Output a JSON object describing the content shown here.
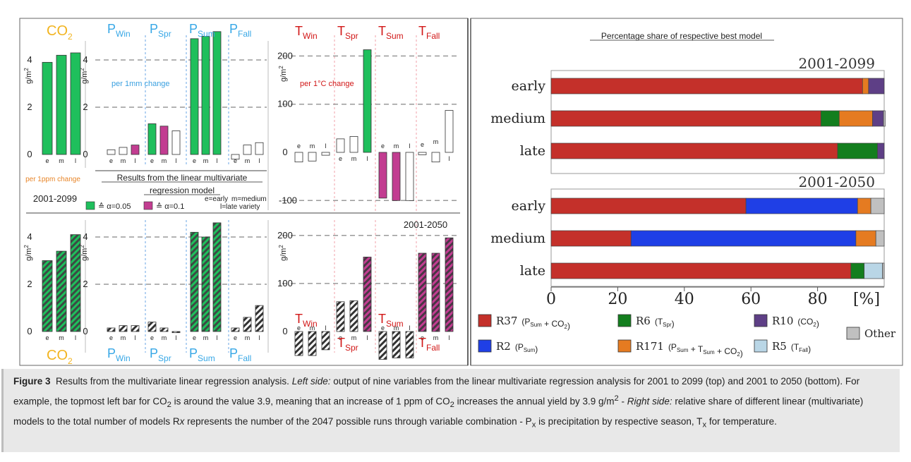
{
  "chart_data": [
    {
      "panel": "left-top",
      "type": "bar",
      "period": "2001-2099",
      "categories": [
        "e",
        "m",
        "l"
      ],
      "groups": [
        {
          "label": "CO",
          "sub": "2",
          "unit_note": "per 1ppm change",
          "values": [
            3.9,
            4.2,
            4.3
          ],
          "sig": [
            "a05",
            "a05",
            "a05"
          ]
        },
        {
          "label": "P",
          "sub": "Win",
          "values": [
            0.2,
            0.3,
            0.4
          ],
          "sig": [
            "none",
            "none",
            "a10"
          ]
        },
        {
          "label": "P",
          "sub": "Spr",
          "values": [
            1.3,
            1.2,
            1.0
          ],
          "sig": [
            "a05",
            "a10",
            "none"
          ]
        },
        {
          "label": "P",
          "sub": "Sum",
          "values": [
            4.9,
            5.0,
            5.2
          ],
          "sig": [
            "a05",
            "a05",
            "a05"
          ]
        },
        {
          "label": "P",
          "sub": "Fall",
          "values": [
            -0.2,
            0.4,
            0.5
          ],
          "sig": [
            "none",
            "none",
            "none"
          ]
        },
        {
          "label": "T",
          "sub": "Win",
          "values": [
            -20,
            -18,
            -6
          ],
          "sig": [
            "none",
            "none",
            "none"
          ]
        },
        {
          "label": "T",
          "sub": "Spr",
          "values": [
            28,
            33,
            213
          ],
          "sig": [
            "none",
            "none",
            "a05"
          ]
        },
        {
          "label": "T",
          "sub": "Sum",
          "values": [
            -95,
            -100,
            -100
          ],
          "sig": [
            "a10",
            "a10",
            "none"
          ]
        },
        {
          "label": "T",
          "sub": "Fall",
          "values": [
            -5,
            -20,
            87
          ],
          "sig": [
            "none",
            "none",
            "none"
          ]
        }
      ],
      "p_axis": {
        "ylabel": "g/m",
        "ylabel_sup": "2",
        "ticks": [
          0,
          2,
          4
        ],
        "note": "per 1mm change"
      },
      "t_axis": {
        "ylabel": "g/m",
        "ylabel_sup": "2",
        "ticks": [
          -100,
          0,
          100,
          200
        ],
        "note": "per 1°C change"
      }
    },
    {
      "panel": "left-bottom",
      "type": "bar",
      "period": "2001-2050",
      "categories": [
        "e",
        "m",
        "l"
      ],
      "groups": [
        {
          "label": "CO",
          "sub": "2",
          "values": [
            3.0,
            3.4,
            4.1
          ],
          "sig": [
            "a05",
            "a05",
            "a05"
          ]
        },
        {
          "label": "P",
          "sub": "Win",
          "values": [
            0.15,
            0.25,
            0.25
          ],
          "sig": [
            "none",
            "none",
            "none"
          ]
        },
        {
          "label": "P",
          "sub": "Spr",
          "values": [
            0.4,
            0.15,
            -0.05
          ],
          "sig": [
            "none",
            "none",
            "none"
          ]
        },
        {
          "label": "P",
          "sub": "Sum",
          "values": [
            4.2,
            4.0,
            4.6
          ],
          "sig": [
            "a05",
            "a05",
            "a05"
          ]
        },
        {
          "label": "P",
          "sub": "Fall",
          "values": [
            0.15,
            0.6,
            1.1
          ],
          "sig": [
            "none",
            "none",
            "none"
          ]
        },
        {
          "label": "T",
          "sub": "Win",
          "values": [
            -50,
            -50,
            -38
          ],
          "sig": [
            "none",
            "none",
            "none"
          ]
        },
        {
          "label": "T",
          "sub": "Spr",
          "values": [
            62,
            64,
            155
          ],
          "sig": [
            "none",
            "none",
            "a10"
          ]
        },
        {
          "label": "T",
          "sub": "Sum",
          "values": [
            -58,
            -55,
            -55
          ],
          "sig": [
            "none",
            "none",
            "none"
          ]
        },
        {
          "label": "T",
          "sub": "Fall",
          "values": [
            163,
            163,
            195
          ],
          "sig": [
            "a10",
            "a10",
            "a10"
          ]
        }
      ]
    },
    {
      "panel": "right",
      "type": "bar",
      "orientation": "horizontal",
      "stacked": true,
      "title": "Percentage share of respective best model",
      "xlabel": "[%]",
      "xlim": [
        0,
        100
      ],
      "x_ticks": [
        0,
        20,
        40,
        60,
        80
      ],
      "rows": [
        "early",
        "medium",
        "late"
      ],
      "blocks": [
        {
          "period": "2001-2099",
          "bars": [
            [
              {
                "m": "R37",
                "v": 93.5
              },
              {
                "m": "R171",
                "v": 1.8
              },
              {
                "m": "R10",
                "v": 4.7
              }
            ],
            [
              {
                "m": "R37",
                "v": 81.0
              },
              {
                "m": "R6",
                "v": 5.5
              },
              {
                "m": "R171",
                "v": 10.0
              },
              {
                "m": "R10",
                "v": 3.3
              },
              {
                "m": "Other",
                "v": 0.5
              }
            ],
            [
              {
                "m": "R37",
                "v": 86.0
              },
              {
                "m": "R6",
                "v": 12.0
              },
              {
                "m": "R10",
                "v": 2.0
              }
            ]
          ]
        },
        {
          "period": "2001-2050",
          "bars": [
            [
              {
                "m": "R37",
                "v": 58.5
              },
              {
                "m": "R2",
                "v": 33.5
              },
              {
                "m": "R171",
                "v": 4.0
              },
              {
                "m": "Other",
                "v": 4.0
              }
            ],
            [
              {
                "m": "R37",
                "v": 24.0
              },
              {
                "m": "R2",
                "v": 67.5
              },
              {
                "m": "R171",
                "v": 6.0
              },
              {
                "m": "Other",
                "v": 2.5
              }
            ],
            [
              {
                "m": "R37",
                "v": 90.0
              },
              {
                "m": "R6",
                "v": 4.0
              },
              {
                "m": "R5",
                "v": 5.5
              },
              {
                "m": "Other",
                "v": 0.5
              }
            ]
          ]
        }
      ]
    }
  ],
  "colors": {
    "R37": "#c4302a",
    "R2": "#1f3fe6",
    "R6": "#137e1e",
    "R171": "#e57b21",
    "R10": "#5e3f86",
    "R5": "#b9d6e6",
    "Other": "#c0c0c0",
    "a05": "#1fbf5c",
    "a10": "#c23d91",
    "co2_label": "#f2b420",
    "p_label": "#37a7e6",
    "t_label": "#d11717",
    "note_orange": "#e8862a",
    "note_blue": "#3aa0e0"
  },
  "left_text": {
    "results_title_1": "Results from the linear multivariate",
    "results_title_2": "regression model",
    "sig05": "≙ α=0.05",
    "sig10": "≙ α=0.1",
    "abbrev_1": "e=early",
    "abbrev_2": "m=medium",
    "abbrev_3": "l=late variety",
    "period_top": "2001-2099",
    "period_bottom": "2001-2050",
    "tick_p": [
      "0",
      "2",
      "4"
    ],
    "tick_t": [
      "-100",
      "0",
      "100",
      "200"
    ]
  },
  "legend": [
    {
      "key": "R37",
      "name": "R37",
      "detail": "(P",
      "sub": "Sum",
      "detail2": " + CO",
      "sub2": "2",
      "detail3": ")"
    },
    {
      "key": "R6",
      "name": "R6",
      "detail": "(T",
      "sub": "Spr",
      "detail2": ")"
    },
    {
      "key": "R10",
      "name": "R10",
      "detail": "(CO",
      "sub": "2",
      "detail2": ")"
    },
    {
      "key": "Other",
      "name": "Other"
    },
    {
      "key": "R2",
      "name": "R2",
      "detail": "(P",
      "sub": "Sum",
      "detail2": ")"
    },
    {
      "key": "R171",
      "name": "R171",
      "detail": "(P",
      "sub": "Sum",
      "detail2": " + T",
      "sub2": "Sum",
      "detail3": " + CO",
      "sub3": "2",
      "detail4": ")"
    },
    {
      "key": "R5",
      "name": "R5",
      "detail": "(T",
      "sub": "Fall",
      "detail2": ")"
    }
  ],
  "caption": {
    "fig": "Figure 3",
    "text1": "Results from the multivariate linear regression analysis.",
    "left_label": "Left side:",
    "text2": "output of nine variables from the linear multivariate regression analysis for 2001 to 2099 (top) and 2001 to 2050 (bottom). For example, the topmost left bar for CO",
    "text3": " is around the value 3.9, meaning that an increase of 1 ppm of CO",
    "text4": " increases the annual yield by 3.9 g/m",
    "text5": " - ",
    "right_label": "Right side:",
    "text6": "relative share of different linear (multivariate) models to the total number of models R",
    "text7": "x",
    "text8": "represents the number of the 2047 possible runs through variable combination - P",
    "text9": " is precipitation by respective season, T",
    "text10": " for temperature.",
    "sub2": "2",
    "sup2": "2",
    "subx": "x"
  }
}
